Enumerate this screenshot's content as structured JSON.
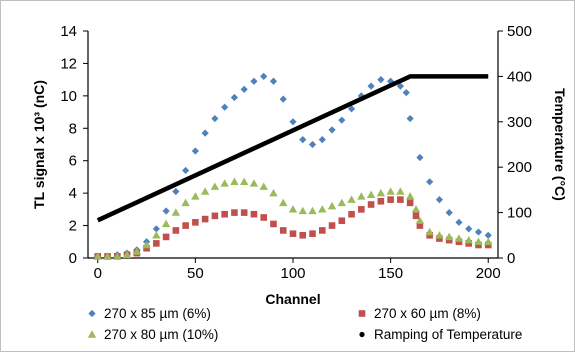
{
  "chart_data": {
    "type": "scatter",
    "title": "",
    "xlabel": "Channel",
    "ylabel": "TL signal x 10³ (nC)",
    "y2label": "Temperature (°C)",
    "xlim": [
      -5,
      205
    ],
    "ylim": [
      0,
      14
    ],
    "y2lim": [
      0,
      500
    ],
    "x_ticks": [
      0,
      50,
      100,
      150,
      200
    ],
    "y_ticks": [
      0,
      2,
      4,
      6,
      8,
      10,
      12,
      14
    ],
    "y2_ticks": [
      0,
      100,
      200,
      300,
      400,
      500
    ],
    "grid": false,
    "legend_position": "bottom",
    "series": [
      {
        "name": "270 x 85 µm (6%)",
        "axis": "left",
        "marker": "diamond",
        "color": "#4f81bd",
        "points": [
          [
            0,
            0.1
          ],
          [
            5,
            0.1
          ],
          [
            10,
            0.2
          ],
          [
            15,
            0.3
          ],
          [
            20,
            0.5
          ],
          [
            25,
            1.0
          ],
          [
            30,
            1.8
          ],
          [
            35,
            2.9
          ],
          [
            40,
            4.1
          ],
          [
            45,
            5.4
          ],
          [
            50,
            6.6
          ],
          [
            55,
            7.7
          ],
          [
            60,
            8.6
          ],
          [
            65,
            9.3
          ],
          [
            70,
            9.9
          ],
          [
            75,
            10.4
          ],
          [
            80,
            10.9
          ],
          [
            85,
            11.2
          ],
          [
            90,
            10.9
          ],
          [
            95,
            9.8
          ],
          [
            100,
            8.4
          ],
          [
            105,
            7.3
          ],
          [
            110,
            7.0
          ],
          [
            115,
            7.3
          ],
          [
            120,
            7.9
          ],
          [
            125,
            8.5
          ],
          [
            130,
            9.2
          ],
          [
            135,
            10.0
          ],
          [
            140,
            10.6
          ],
          [
            145,
            11.0
          ],
          [
            150,
            10.9
          ],
          [
            155,
            10.6
          ],
          [
            158,
            10.2
          ],
          [
            160,
            8.6
          ],
          [
            165,
            6.2
          ],
          [
            170,
            4.7
          ],
          [
            175,
            3.6
          ],
          [
            180,
            2.8
          ],
          [
            185,
            2.2
          ],
          [
            190,
            1.8
          ],
          [
            195,
            1.6
          ],
          [
            200,
            1.4
          ]
        ]
      },
      {
        "name": "270 x 60 µm (8%)",
        "axis": "left",
        "marker": "square",
        "color": "#c0504d",
        "points": [
          [
            0,
            0.1
          ],
          [
            5,
            0.1
          ],
          [
            10,
            0.1
          ],
          [
            15,
            0.2
          ],
          [
            20,
            0.3
          ],
          [
            25,
            0.6
          ],
          [
            30,
            0.9
          ],
          [
            35,
            1.3
          ],
          [
            40,
            1.7
          ],
          [
            45,
            2.0
          ],
          [
            50,
            2.2
          ],
          [
            55,
            2.4
          ],
          [
            60,
            2.6
          ],
          [
            65,
            2.7
          ],
          [
            70,
            2.8
          ],
          [
            75,
            2.8
          ],
          [
            80,
            2.7
          ],
          [
            85,
            2.5
          ],
          [
            90,
            2.1
          ],
          [
            95,
            1.7
          ],
          [
            100,
            1.5
          ],
          [
            105,
            1.4
          ],
          [
            110,
            1.5
          ],
          [
            115,
            1.7
          ],
          [
            120,
            2.0
          ],
          [
            125,
            2.3
          ],
          [
            130,
            2.7
          ],
          [
            135,
            3.0
          ],
          [
            140,
            3.3
          ],
          [
            145,
            3.5
          ],
          [
            150,
            3.6
          ],
          [
            155,
            3.6
          ],
          [
            160,
            3.4
          ],
          [
            163,
            2.6
          ],
          [
            165,
            2.0
          ],
          [
            170,
            1.4
          ],
          [
            175,
            1.2
          ],
          [
            180,
            1.1
          ],
          [
            185,
            1.0
          ],
          [
            190,
            0.9
          ],
          [
            195,
            0.8
          ],
          [
            200,
            0.8
          ]
        ]
      },
      {
        "name": "270 x 80 µm (10%)",
        "axis": "left",
        "marker": "triangle",
        "color": "#9bbb59",
        "points": [
          [
            0,
            0.1
          ],
          [
            5,
            0.1
          ],
          [
            10,
            0.1
          ],
          [
            15,
            0.2
          ],
          [
            20,
            0.4
          ],
          [
            25,
            0.8
          ],
          [
            30,
            1.4
          ],
          [
            35,
            2.1
          ],
          [
            40,
            2.8
          ],
          [
            45,
            3.4
          ],
          [
            50,
            3.8
          ],
          [
            55,
            4.1
          ],
          [
            60,
            4.4
          ],
          [
            65,
            4.6
          ],
          [
            70,
            4.7
          ],
          [
            75,
            4.7
          ],
          [
            80,
            4.6
          ],
          [
            85,
            4.4
          ],
          [
            90,
            4.0
          ],
          [
            95,
            3.4
          ],
          [
            100,
            3.0
          ],
          [
            105,
            2.9
          ],
          [
            110,
            2.9
          ],
          [
            115,
            3.0
          ],
          [
            120,
            3.2
          ],
          [
            125,
            3.4
          ],
          [
            130,
            3.6
          ],
          [
            135,
            3.8
          ],
          [
            140,
            3.9
          ],
          [
            145,
            4.0
          ],
          [
            150,
            4.1
          ],
          [
            155,
            4.1
          ],
          [
            160,
            3.8
          ],
          [
            163,
            3.0
          ],
          [
            165,
            2.3
          ],
          [
            170,
            1.6
          ],
          [
            175,
            1.4
          ],
          [
            180,
            1.3
          ],
          [
            185,
            1.2
          ],
          [
            190,
            1.1
          ],
          [
            195,
            1.0
          ],
          [
            200,
            1.0
          ]
        ]
      },
      {
        "name": "Ramping of Temperature",
        "axis": "right",
        "marker": "dot",
        "color": "#000000",
        "points": [
          [
            0,
            83
          ],
          [
            160,
            400
          ],
          [
            200,
            400
          ]
        ]
      }
    ]
  }
}
